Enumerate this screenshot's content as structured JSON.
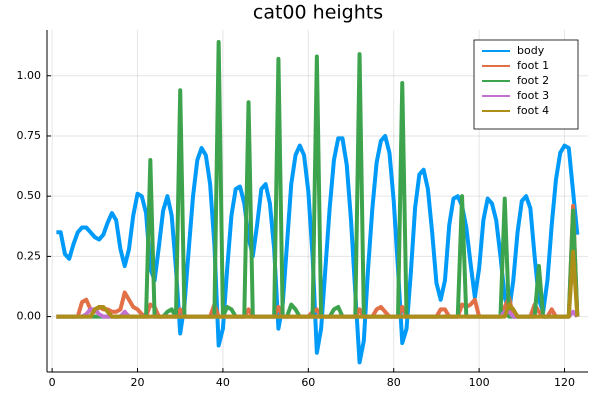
{
  "chart_data": {
    "type": "line",
    "title": "cat00 heights",
    "x": [
      1,
      2,
      3,
      4,
      5,
      6,
      7,
      8,
      9,
      10,
      11,
      12,
      13,
      14,
      15,
      16,
      17,
      18,
      19,
      20,
      21,
      22,
      23,
      24,
      25,
      26,
      27,
      28,
      29,
      30,
      31,
      32,
      33,
      34,
      35,
      36,
      37,
      38,
      39,
      40,
      41,
      42,
      43,
      44,
      45,
      46,
      47,
      48,
      49,
      50,
      51,
      52,
      53,
      54,
      55,
      56,
      57,
      58,
      59,
      60,
      61,
      62,
      63,
      64,
      65,
      66,
      67,
      68,
      69,
      70,
      71,
      72,
      73,
      74,
      75,
      76,
      77,
      78,
      79,
      80,
      81,
      82,
      83,
      84,
      85,
      86,
      87,
      88,
      89,
      90,
      91,
      92,
      93,
      94,
      95,
      96,
      97,
      98,
      99,
      100,
      101,
      102,
      103,
      104,
      105,
      106,
      107,
      108,
      109,
      110,
      111,
      112,
      113,
      114,
      115,
      116,
      117,
      118,
      119,
      120,
      121,
      122,
      123
    ],
    "series": [
      {
        "name": "body",
        "color": "#009af9",
        "values": [
          0.35,
          0.35,
          0.26,
          0.24,
          0.3,
          0.35,
          0.37,
          0.37,
          0.35,
          0.33,
          0.32,
          0.34,
          0.39,
          0.43,
          0.4,
          0.28,
          0.21,
          0.28,
          0.42,
          0.51,
          0.5,
          0.43,
          0.2,
          0.15,
          0.29,
          0.44,
          0.5,
          0.42,
          0.2,
          -0.07,
          0.05,
          0.28,
          0.5,
          0.65,
          0.7,
          0.67,
          0.55,
          0.3,
          -0.12,
          -0.05,
          0.2,
          0.42,
          0.53,
          0.54,
          0.47,
          0.33,
          0.25,
          0.38,
          0.53,
          0.55,
          0.47,
          0.28,
          -0.05,
          0.05,
          0.3,
          0.55,
          0.67,
          0.71,
          0.67,
          0.52,
          0.25,
          -0.15,
          -0.05,
          0.2,
          0.45,
          0.65,
          0.74,
          0.74,
          0.63,
          0.4,
          0.1,
          -0.19,
          -0.1,
          0.2,
          0.45,
          0.64,
          0.73,
          0.75,
          0.68,
          0.48,
          0.2,
          -0.11,
          -0.05,
          0.18,
          0.45,
          0.59,
          0.61,
          0.53,
          0.35,
          0.14,
          0.07,
          0.15,
          0.38,
          0.49,
          0.5,
          0.46,
          0.37,
          0.22,
          0.08,
          0.2,
          0.4,
          0.49,
          0.47,
          0.4,
          0.25,
          0.08,
          0.02,
          0.15,
          0.35,
          0.48,
          0.5,
          0.45,
          0.25,
          0.07,
          0.02,
          0.15,
          0.38,
          0.57,
          0.68,
          0.71,
          0.7,
          0.52,
          0.34
        ]
      },
      {
        "name": "foot 1",
        "color": "#e26f46",
        "values": [
          0,
          0,
          0,
          0,
          0,
          0,
          0.06,
          0.07,
          0.03,
          0.02,
          0.04,
          0.03,
          0.03,
          0.02,
          0.02,
          0.03,
          0.1,
          0.07,
          0.04,
          0.03,
          0.01,
          0,
          0.05,
          0.04,
          0,
          0,
          0,
          0,
          0,
          0.03,
          0,
          0,
          0,
          0,
          0,
          0,
          0,
          0.05,
          0,
          0,
          0,
          0,
          0,
          0,
          0,
          0.03,
          0,
          0,
          0,
          0,
          0,
          0,
          0.04,
          0,
          0,
          0,
          0,
          0,
          0,
          0,
          0.02,
          0.03,
          0,
          0,
          0,
          0,
          0,
          0,
          0,
          0,
          0,
          0.03,
          0,
          0,
          0,
          0.03,
          0.04,
          0.02,
          0,
          0,
          0,
          0.04,
          0,
          0,
          0,
          0,
          0,
          0,
          0,
          0,
          0.03,
          0.03,
          0,
          0,
          0,
          0.05,
          0.04,
          0.05,
          0.07,
          0,
          0,
          0,
          0,
          0,
          0,
          0.04,
          0.08,
          0,
          0,
          0,
          0,
          0,
          0.05,
          0.02,
          0,
          0,
          0.03,
          0,
          0,
          0,
          0,
          0.46,
          0
        ]
      },
      {
        "name": "foot 2",
        "color": "#3da44d",
        "values": [
          0,
          0,
          0,
          0,
          0,
          0,
          0,
          0,
          0,
          0,
          0,
          0,
          0,
          0,
          0,
          0,
          0,
          0,
          0,
          0,
          0,
          0,
          0.65,
          0,
          0,
          0,
          0.02,
          0.03,
          0,
          0.94,
          0,
          0,
          0,
          0,
          0,
          0,
          0,
          0,
          1.14,
          0,
          0.04,
          0.03,
          0,
          0,
          0,
          0.89,
          0,
          0,
          0,
          0,
          0,
          0,
          1.07,
          0,
          0,
          0.05,
          0.03,
          0,
          0,
          0,
          0,
          1.08,
          0,
          0,
          0,
          0.03,
          0.04,
          0,
          0,
          0,
          0,
          1.09,
          0,
          0,
          0,
          0,
          0,
          0,
          0,
          0,
          0,
          0.97,
          0,
          0,
          0,
          0,
          0,
          0,
          0,
          0,
          0,
          0,
          0,
          0,
          0,
          0.5,
          0,
          0,
          0,
          0,
          0,
          0,
          0,
          0,
          0,
          0.49,
          0,
          0,
          0,
          0,
          0,
          0,
          0,
          0.21,
          0,
          0,
          0,
          0,
          0,
          0,
          0,
          0.44,
          0
        ]
      },
      {
        "name": "foot 3",
        "color": "#c271d2",
        "values": [
          0,
          0,
          0,
          0,
          0,
          0,
          0,
          0.01,
          0.03,
          0.03,
          0.01,
          0,
          0,
          0,
          0,
          0,
          0.02,
          0,
          0,
          0,
          0,
          0,
          0,
          0,
          0,
          0,
          0,
          0,
          0,
          0,
          0,
          0,
          0,
          0,
          0,
          0,
          0,
          0,
          0,
          0,
          0,
          0,
          0,
          0,
          0,
          0,
          0,
          0,
          0,
          0,
          0,
          0,
          0,
          0,
          0,
          0,
          0,
          0,
          0,
          0,
          0,
          0,
          0,
          0,
          0,
          0,
          0,
          0,
          0,
          0,
          0,
          0,
          0,
          0,
          0,
          0,
          0,
          0,
          0,
          0,
          0,
          0,
          0,
          0,
          0,
          0,
          0,
          0,
          0,
          0,
          0,
          0,
          0,
          0,
          0,
          0,
          0,
          0,
          0,
          0,
          0,
          0,
          0,
          0,
          0,
          0.02,
          0.02,
          0,
          0,
          0,
          0,
          0,
          0,
          0,
          0,
          0,
          0,
          0,
          0,
          0,
          0,
          0.02,
          0
        ]
      },
      {
        "name": "foot 4",
        "color": "#ac8e18",
        "values": [
          0,
          0,
          0,
          0,
          0,
          0,
          0,
          0,
          0,
          0.03,
          0.04,
          0.04,
          0.02,
          0,
          0,
          0,
          0,
          0,
          0,
          0,
          0,
          0,
          0,
          0,
          0,
          0,
          0,
          0,
          0,
          0,
          0,
          0,
          0,
          0,
          0,
          0,
          0,
          0,
          0,
          0,
          0,
          0,
          0,
          0,
          0,
          0,
          0,
          0,
          0,
          0,
          0,
          0,
          0,
          0,
          0,
          0,
          0,
          0,
          0,
          0,
          0,
          0,
          0,
          0,
          0,
          0,
          0,
          0,
          0,
          0,
          0,
          0,
          0,
          0,
          0,
          0,
          0,
          0,
          0,
          0,
          0,
          0,
          0,
          0,
          0,
          0,
          0,
          0,
          0,
          0,
          0,
          0,
          0,
          0,
          0,
          0,
          0,
          0,
          0,
          0,
          0,
          0,
          0,
          0,
          0,
          0,
          0.05,
          0.03,
          0,
          0,
          0,
          0,
          0,
          0,
          0,
          0,
          0,
          0,
          0,
          0,
          0,
          0.27,
          0
        ]
      }
    ],
    "xlim": [
      -1.2,
      125.5
    ],
    "xticks": [
      0,
      20,
      40,
      60,
      80,
      100,
      120
    ],
    "ylim": [
      -0.23,
      1.19
    ],
    "yticks": [
      {
        "value": 0,
        "label": "0.00"
      },
      {
        "value": 0.25,
        "label": "0.25"
      },
      {
        "value": 0.5,
        "label": "0.50"
      },
      {
        "value": 0.75,
        "label": "0.75"
      },
      {
        "value": 1,
        "label": "1.00"
      }
    ],
    "grid": true,
    "legend": "topright"
  }
}
